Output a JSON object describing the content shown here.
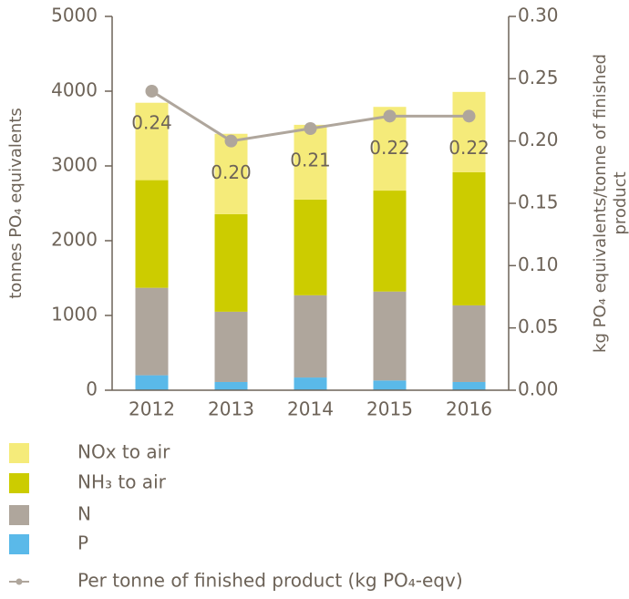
{
  "chart_data": {
    "type": "bar",
    "categories": [
      "2012",
      "2013",
      "2014",
      "2015",
      "2016"
    ],
    "ylabel": "tonnes PO₄ equivalents",
    "y2label": [
      "kg PO₄ equivalents/tonne of finished",
      "product"
    ],
    "ylim": [
      0,
      5000
    ],
    "yticks": [
      0,
      1000,
      2000,
      3000,
      4000,
      5000
    ],
    "y2lim": [
      0,
      0.3
    ],
    "y2ticks": [
      {
        "value": 0,
        "label": "0.00"
      },
      {
        "value": 0.05,
        "label": "0.05"
      },
      {
        "value": 0.1,
        "label": "0.10"
      },
      {
        "value": 0.15,
        "label": "0.15"
      },
      {
        "value": 0.2,
        "label": "0.20"
      },
      {
        "value": 0.25,
        "label": "0.25"
      },
      {
        "value": 0.3,
        "label": "0.30"
      }
    ],
    "stacked": true,
    "series": [
      {
        "name": "P",
        "color": "#5ab9e9",
        "values": [
          200,
          110,
          170,
          130,
          110
        ]
      },
      {
        "name": "N",
        "color": "#afa69c",
        "values": [
          1170,
          940,
          1100,
          1190,
          1025
        ]
      },
      {
        "name": "NH₃ to air",
        "color": "#cccc00",
        "values": [
          1440,
          1305,
          1280,
          1350,
          1780
        ]
      },
      {
        "name": "NOx to air",
        "color": "#f5eb7a",
        "values": [
          1035,
          1075,
          1000,
          1120,
          1075
        ]
      },
      {
        "name": "Per tonne of finished product (kg PO₄-eqv)",
        "color": "#afa69c",
        "type": "line",
        "axis": "y2",
        "values": [
          0.24,
          0.2,
          0.21,
          0.22,
          0.22
        ],
        "value_labels": [
          "0.24",
          "0.20",
          "0.21",
          "0.22",
          "0.22"
        ]
      }
    ]
  }
}
